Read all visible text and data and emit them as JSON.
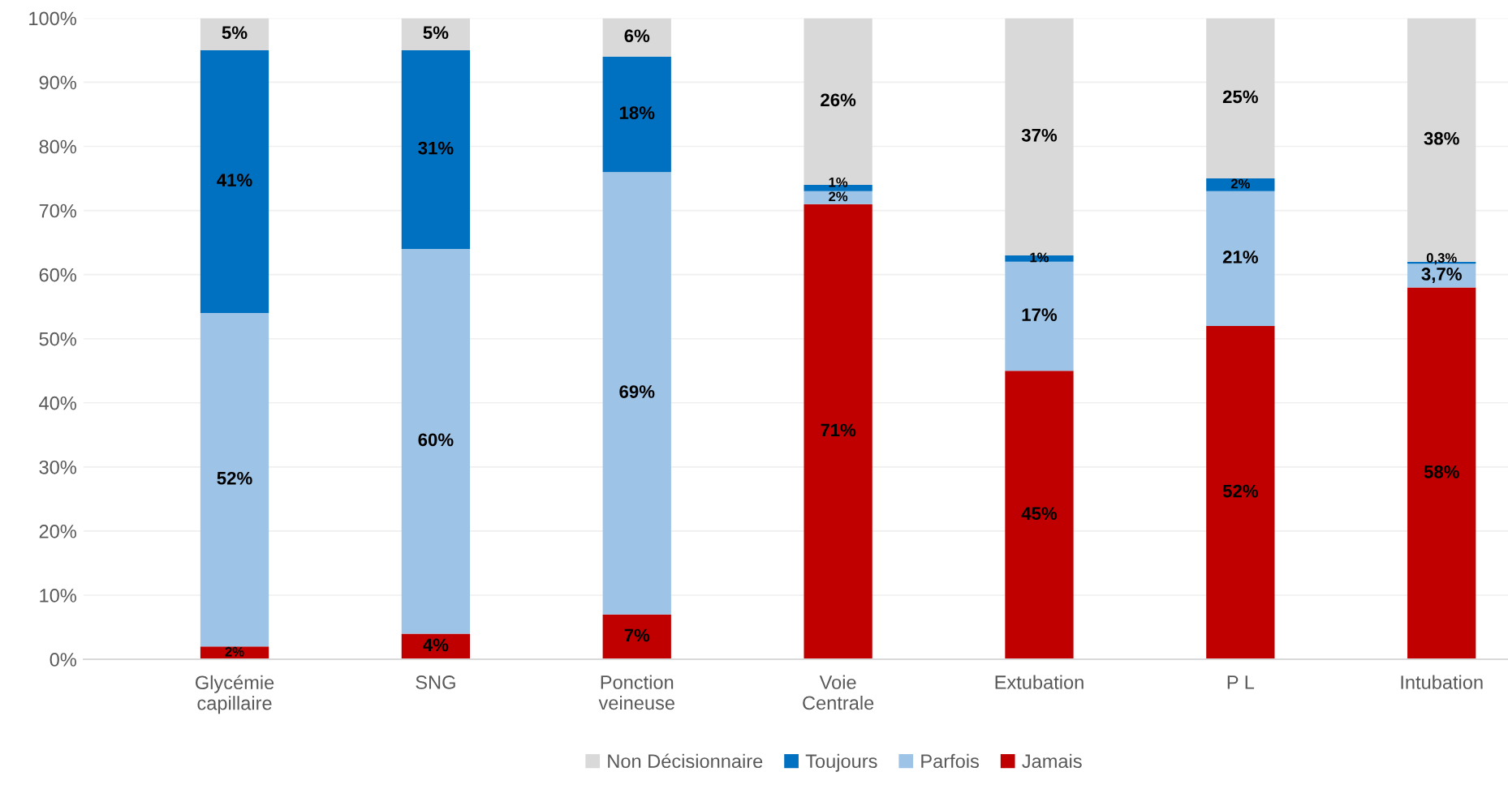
{
  "chart_data": {
    "type": "bar",
    "stacked": true,
    "categories": [
      "Glycémie\ncapillaire",
      "SNG",
      "Ponction\nveineuse",
      "Voie\nCentrale",
      "Extubation",
      "P L",
      "Intubation"
    ],
    "series": [
      {
        "name": "Jamais",
        "color": "#c00000",
        "values": [
          2,
          4,
          7,
          71,
          45,
          52,
          58
        ],
        "value_labels": [
          "2%",
          "4%",
          "7%",
          "71%",
          "45%",
          "52%",
          "58%"
        ]
      },
      {
        "name": "Parfois",
        "color": "#9dc3e6",
        "values": [
          52,
          60,
          69,
          2,
          17,
          21,
          3.7
        ],
        "value_labels": [
          "52%",
          "60%",
          "69%",
          "2%",
          "17%",
          "21%",
          "3,7%"
        ]
      },
      {
        "name": "Toujours",
        "color": "#0070c0",
        "values": [
          41,
          31,
          18,
          1,
          1,
          2,
          0.3
        ],
        "value_labels": [
          "41%",
          "31%",
          "18%",
          "1%",
          "1%",
          "2%",
          "0,3%"
        ]
      },
      {
        "name": "Non Décisionnaire",
        "color": "#d9d9d9",
        "values": [
          5,
          5,
          6,
          26,
          37,
          25,
          38
        ],
        "value_labels": [
          "5%",
          "5%",
          "6%",
          "26%",
          "37%",
          "25%",
          "38%"
        ]
      }
    ],
    "ylim": [
      0,
      100
    ],
    "yticks": [
      {
        "value": 0,
        "label": "0%"
      },
      {
        "value": 10,
        "label": "10%"
      },
      {
        "value": 20,
        "label": "20%"
      },
      {
        "value": 30,
        "label": "30%"
      },
      {
        "value": 40,
        "label": "40%"
      },
      {
        "value": 50,
        "label": "50%"
      },
      {
        "value": 60,
        "label": "60%"
      },
      {
        "value": 70,
        "label": "70%"
      },
      {
        "value": 80,
        "label": "80%"
      },
      {
        "value": 90,
        "label": "90%"
      },
      {
        "value": 100,
        "label": "100%"
      }
    ],
    "grid": "y",
    "legend": "bottom"
  }
}
